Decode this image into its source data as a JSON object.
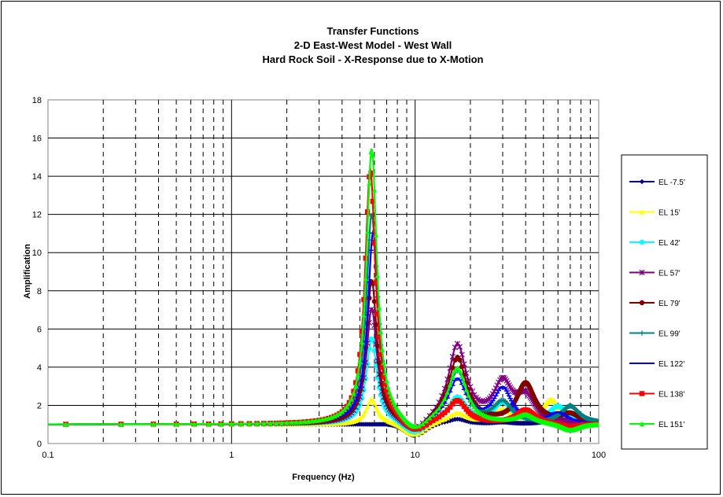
{
  "chart_data": {
    "type": "line",
    "title": [
      "Transfer Functions",
      "2-D East-West Model - West Wall",
      "Hard Rock Soil - X-Response due to X-Motion"
    ],
    "xlabel": "Frequency (Hz)",
    "ylabel": "Amplification",
    "xscale": "log",
    "xlim": [
      0.1,
      100
    ],
    "ylim": [
      0,
      18
    ],
    "xticks": [
      "0.1",
      "1",
      "10",
      "100"
    ],
    "yticks": [
      "0",
      "2",
      "4",
      "6",
      "8",
      "10",
      "12",
      "14",
      "16",
      "18"
    ],
    "grid": "horizontal solid; vertical solid at decades, dashed at minor ticks",
    "legend_position": "right",
    "series": [
      {
        "name": "EL -7.5'",
        "color": "#000080",
        "marker": "diamond",
        "peaks": [
          [
            5.8,
            1.0
          ],
          [
            17,
            1.3
          ],
          [
            30,
            1.1
          ],
          [
            60,
            1.4
          ]
        ],
        "baseline": 1.0
      },
      {
        "name": "EL 15'",
        "color": "#FFFF00",
        "marker": "triangle",
        "peaks": [
          [
            5.8,
            2.3
          ],
          [
            17,
            1.6
          ],
          [
            30,
            1.8
          ],
          [
            55,
            2.4
          ]
        ],
        "baseline": 1.0
      },
      {
        "name": "EL 42'",
        "color": "#00FFFF",
        "marker": "circle",
        "peaks": [
          [
            5.8,
            5.5
          ],
          [
            17,
            2.5
          ],
          [
            30,
            2.2
          ],
          [
            60,
            2.0
          ]
        ],
        "baseline": 1.0
      },
      {
        "name": "EL 57'",
        "color": "#800080",
        "marker": "asterisk",
        "peaks": [
          [
            5.8,
            7.0
          ],
          [
            17,
            5.5
          ],
          [
            30,
            3.2
          ],
          [
            40,
            2.4
          ]
        ],
        "baseline": 1.0
      },
      {
        "name": "EL 79'",
        "color": "#800000",
        "marker": "circle",
        "peaks": [
          [
            5.8,
            8.5
          ],
          [
            17,
            4.8
          ],
          [
            40,
            3.3
          ],
          [
            70,
            1.5
          ]
        ],
        "baseline": 1.0
      },
      {
        "name": "EL 99'",
        "color": "#008080",
        "marker": "plus",
        "peaks": [
          [
            5.8,
            12.0
          ],
          [
            17,
            4.0
          ],
          [
            30,
            2.2
          ],
          [
            70,
            2.0
          ]
        ],
        "baseline": 1.0
      },
      {
        "name": "EL 122'",
        "color": "#0000FF",
        "marker": "dash",
        "peaks": [
          [
            5.9,
            11.0
          ],
          [
            17,
            3.5
          ],
          [
            30,
            3.0
          ],
          [
            60,
            1.6
          ]
        ],
        "baseline": 1.0
      },
      {
        "name": "EL 138'",
        "color": "#FF0000",
        "marker": "square",
        "peaks": [
          [
            5.7,
            14.3
          ],
          [
            17,
            2.3
          ],
          [
            40,
            1.8
          ],
          [
            70,
            0.8
          ]
        ],
        "baseline": 1.0
      },
      {
        "name": "EL 151'",
        "color": "#00FF00",
        "marker": "triangle",
        "peaks": [
          [
            5.8,
            15.4
          ],
          [
            17,
            4.2
          ],
          [
            40,
            1.5
          ],
          [
            70,
            0.6
          ]
        ],
        "baseline": 1.0
      }
    ]
  }
}
